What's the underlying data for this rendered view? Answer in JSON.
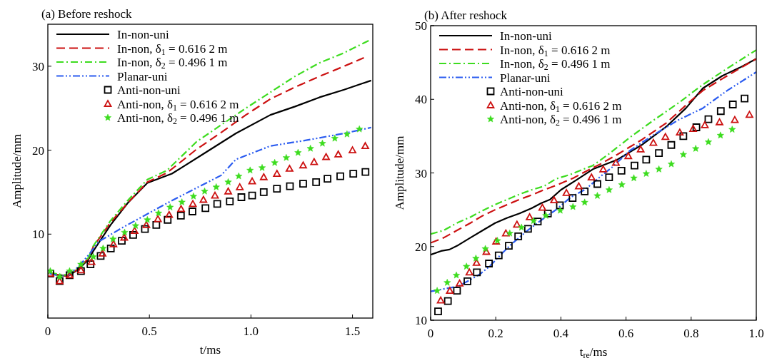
{
  "chart_data": [
    {
      "type": "line",
      "title": "(a) Before reshock",
      "xlabel": "t/ms",
      "ylabel": "Amplitude/mm",
      "xlim": [
        0,
        1.6
      ],
      "xticks": [
        0,
        0.5,
        {
          "value": 1,
          "label": "1.0"
        },
        1.5
      ],
      "ylim": [
        0,
        35
      ],
      "yticks": [
        10,
        20,
        30
      ],
      "legend": "top left",
      "grid": false,
      "series": [
        {
          "name": "In-non-uni",
          "type": "line",
          "line_style": "solid",
          "color": "#000000",
          "x": [
            0.01,
            0.06,
            0.1,
            0.15,
            0.2,
            0.224,
            0.309,
            0.393,
            0.49,
            0.611,
            0.769,
            0.926,
            1.096,
            1.217,
            1.338,
            1.459,
            1.592
          ],
          "values": [
            5.3,
            5.1,
            5.0,
            5.8,
            7.0,
            8.0,
            11.1,
            13.7,
            16.1,
            17.2,
            19.6,
            22.0,
            24.2,
            25.2,
            26.3,
            27.2,
            28.3
          ]
        },
        {
          "name": "In-non, δ$_{1}$ = 0.616 2 m",
          "type": "line",
          "line_style": "dashed",
          "color": "#cc1111",
          "x": [
            0.01,
            0.06,
            0.1,
            0.15,
            0.2,
            0.224,
            0.309,
            0.393,
            0.49,
            0.587,
            0.732,
            0.853,
            0.975,
            1.096,
            1.217,
            1.338,
            1.459,
            1.556
          ],
          "values": [
            5.3,
            5.1,
            5.0,
            5.9,
            7.1,
            8.5,
            11.4,
            13.7,
            16.2,
            17.3,
            20.1,
            22.1,
            24.2,
            26.1,
            27.5,
            28.8,
            30.0,
            31.0
          ]
        },
        {
          "name": "In-non, δ$_{2}$ = 0.496 1 m",
          "type": "line",
          "line_style": "dashdot",
          "color": "#3ddc1f",
          "x": [
            0.01,
            0.06,
            0.1,
            0.15,
            0.2,
            0.224,
            0.309,
            0.393,
            0.49,
            0.587,
            0.732,
            0.853,
            0.975,
            1.096,
            1.217,
            1.338,
            1.459,
            1.592
          ],
          "values": [
            5.4,
            5.2,
            5.1,
            6.0,
            7.2,
            8.6,
            11.6,
            14.0,
            16.5,
            17.6,
            21.0,
            23.0,
            25.0,
            26.9,
            28.8,
            30.4,
            31.6,
            33.2
          ]
        },
        {
          "name": "Planar-uni",
          "type": "line",
          "line_style": "dashdotdot",
          "color": "#2b5cf0",
          "x": [
            0.01,
            0.06,
            0.1,
            0.15,
            0.2,
            0.25,
            0.369,
            0.49,
            0.611,
            0.732,
            0.853,
            0.926,
            1.096,
            1.277,
            1.459,
            1.592
          ],
          "values": [
            5.3,
            5.0,
            5.1,
            6.1,
            7.5,
            9.1,
            10.8,
            12.4,
            14.0,
            15.5,
            17.0,
            18.9,
            20.5,
            21.2,
            22.0,
            22.7
          ]
        },
        {
          "name": "Anti-non-uni",
          "type": "scatter",
          "marker": "square",
          "color": "#000000",
          "x": [
            0.012,
            0.058,
            0.107,
            0.163,
            0.21,
            0.26,
            0.31,
            0.364,
            0.42,
            0.478,
            0.534,
            0.59,
            0.655,
            0.712,
            0.776,
            0.834,
            0.896,
            0.953,
            1.006,
            1.063,
            1.128,
            1.192,
            1.257,
            1.321,
            1.377,
            1.44,
            1.504,
            1.564
          ],
          "values": [
            5.3,
            4.4,
            5.1,
            5.6,
            6.4,
            7.4,
            8.3,
            9.2,
            9.9,
            10.6,
            11.1,
            11.7,
            12.2,
            12.7,
            13.1,
            13.6,
            13.9,
            14.4,
            14.6,
            15.0,
            15.4,
            15.7,
            16.0,
            16.2,
            16.6,
            16.9,
            17.2,
            17.4
          ]
        },
        {
          "name": "Anti-non, δ$_{1}$ = 0.616 2 m",
          "type": "scatter",
          "marker": "triangle",
          "color": "#cc1111",
          "x": [
            0.012,
            0.058,
            0.107,
            0.163,
            0.215,
            0.269,
            0.323,
            0.376,
            0.427,
            0.485,
            0.542,
            0.597,
            0.656,
            0.714,
            0.766,
            0.823,
            0.888,
            0.945,
            1.006,
            1.063,
            1.128,
            1.19,
            1.257,
            1.311,
            1.37,
            1.43,
            1.5,
            1.563
          ],
          "values": [
            5.3,
            4.4,
            5.1,
            5.7,
            6.7,
            7.7,
            8.8,
            9.6,
            10.4,
            11.1,
            11.8,
            12.3,
            13.0,
            13.6,
            14.1,
            14.6,
            15.1,
            15.6,
            16.3,
            16.8,
            17.2,
            17.8,
            18.2,
            18.6,
            19.2,
            19.5,
            20.0,
            20.5
          ]
        },
        {
          "name": "Anti-non, δ$_{2}$ = 0.496 1 m",
          "type": "scatter",
          "marker": "star",
          "color": "#3ddc1f",
          "x": [
            0.012,
            0.058,
            0.107,
            0.163,
            0.224,
            0.272,
            0.321,
            0.378,
            0.432,
            0.49,
            0.545,
            0.602,
            0.66,
            0.717,
            0.772,
            0.829,
            0.888,
            0.94,
            0.996,
            1.055,
            1.117,
            1.174,
            1.232,
            1.293,
            1.352,
            1.413,
            1.473,
            1.534
          ],
          "values": [
            5.6,
            4.9,
            5.6,
            6.4,
            7.3,
            8.3,
            9.4,
            10.2,
            11.0,
            11.7,
            12.5,
            13.2,
            13.8,
            14.5,
            15.1,
            15.6,
            16.2,
            16.9,
            17.6,
            17.9,
            18.5,
            19.1,
            19.7,
            20.2,
            20.8,
            21.4,
            21.9,
            22.5
          ]
        }
      ]
    },
    {
      "type": "line",
      "title": "(b) After reshock",
      "xlabel": "t$_{re}$/ms",
      "ylabel": "Amplitude/mm",
      "xlim": [
        0,
        1
      ],
      "xticks": [
        0,
        0.2,
        0.4,
        0.6,
        0.8,
        {
          "value": 1,
          "label": "1.0"
        }
      ],
      "ylim": [
        10,
        50
      ],
      "yticks": [
        10,
        20,
        30,
        40,
        50
      ],
      "legend": "top left",
      "grid": false,
      "series": [
        {
          "name": "In-non-uni",
          "type": "line",
          "line_style": "solid",
          "color": "#000000",
          "x": [
            0,
            0.032,
            0.058,
            0.085,
            0.122,
            0.16,
            0.198,
            0.235,
            0.273,
            0.31,
            0.34,
            0.367,
            0.4,
            0.446,
            0.498,
            0.573,
            0.648,
            0.724,
            0.784,
            0.836,
            0.896,
            0.949,
            1.0
          ],
          "values": [
            18.9,
            19.4,
            19.6,
            20.2,
            21.2,
            22.2,
            23.2,
            23.9,
            24.5,
            25.2,
            25.9,
            26.4,
            27.7,
            29.0,
            30.5,
            31.8,
            33.8,
            36.3,
            38.8,
            41.5,
            43.2,
            44.3,
            45.5
          ]
        },
        {
          "name": "In-non, δ$_{1}$ = 0.616 2 m",
          "type": "line",
          "line_style": "dashed",
          "color": "#cc1111",
          "x": [
            0,
            0.04,
            0.077,
            0.122,
            0.16,
            0.198,
            0.235,
            0.273,
            0.31,
            0.348,
            0.385,
            0.438,
            0.476,
            0.521,
            0.573,
            0.648,
            0.724,
            0.799,
            0.836,
            0.911,
            1.0
          ],
          "values": [
            20.5,
            21.2,
            22.1,
            23.2,
            24.2,
            25.0,
            25.7,
            26.4,
            27.0,
            27.7,
            28.3,
            29.3,
            30.2,
            31.2,
            32.5,
            34.5,
            36.8,
            39.8,
            41.2,
            43.2,
            45.5
          ]
        },
        {
          "name": "In-non, δ$_{2}$ = 0.496 1 m",
          "type": "line",
          "line_style": "dashdot",
          "color": "#3ddc1f",
          "x": [
            0,
            0.04,
            0.085,
            0.122,
            0.16,
            0.198,
            0.235,
            0.273,
            0.31,
            0.348,
            0.385,
            0.43,
            0.468,
            0.498,
            0.551,
            0.611,
            0.686,
            0.761,
            0.836,
            0.911,
            1.0
          ],
          "values": [
            21.7,
            22.2,
            23.3,
            24.0,
            24.9,
            25.7,
            26.4,
            27.1,
            27.7,
            28.2,
            29.2,
            29.8,
            30.5,
            31.0,
            32.7,
            34.8,
            37.2,
            39.5,
            42.0,
            44.2,
            46.7
          ]
        },
        {
          "name": "Planar-uni",
          "type": "line",
          "line_style": "dashdotdot",
          "color": "#2b5cf0",
          "x": [
            0,
            0.047,
            0.085,
            0.122,
            0.153,
            0.183,
            0.213,
            0.25,
            0.295,
            0.34,
            0.385,
            0.43,
            0.476,
            0.521,
            0.558,
            0.611,
            0.686,
            0.761,
            0.836,
            0.911,
            1.0
          ],
          "values": [
            13.9,
            14.3,
            14.6,
            15.5,
            16.3,
            17.4,
            18.8,
            20.4,
            22.1,
            23.6,
            25.0,
            26.7,
            27.8,
            29.5,
            30.8,
            33.0,
            35.2,
            37.2,
            38.8,
            41.2,
            43.7
          ]
        },
        {
          "name": "Anti-non-uni",
          "type": "scatter",
          "marker": "square",
          "color": "#000000",
          "x": [
            0.023,
            0.053,
            0.081,
            0.113,
            0.142,
            0.179,
            0.209,
            0.24,
            0.269,
            0.299,
            0.329,
            0.36,
            0.397,
            0.436,
            0.473,
            0.512,
            0.548,
            0.586,
            0.626,
            0.662,
            0.701,
            0.739,
            0.776,
            0.816,
            0.853,
            0.891,
            0.928,
            0.964
          ],
          "values": [
            11.2,
            12.6,
            14.0,
            15.3,
            16.5,
            17.7,
            18.8,
            20.1,
            21.4,
            22.4,
            23.4,
            24.5,
            25.6,
            26.6,
            27.5,
            28.5,
            29.4,
            30.3,
            31.0,
            31.8,
            32.7,
            33.8,
            35.0,
            36.2,
            37.3,
            38.4,
            39.3,
            40.1
          ]
        },
        {
          "name": "Anti-non, δ$_{1}$ = 0.616 2 m",
          "type": "scatter",
          "marker": "triangle",
          "color": "#cc1111",
          "x": [
            0.031,
            0.059,
            0.089,
            0.119,
            0.141,
            0.171,
            0.201,
            0.231,
            0.265,
            0.304,
            0.343,
            0.379,
            0.417,
            0.455,
            0.494,
            0.53,
            0.569,
            0.607,
            0.645,
            0.684,
            0.721,
            0.765,
            0.806,
            0.842,
            0.887,
            0.934,
            0.979
          ],
          "values": [
            12.7,
            14.0,
            15.0,
            16.5,
            17.8,
            19.3,
            20.7,
            21.8,
            23.0,
            24.0,
            25.3,
            26.3,
            27.3,
            28.2,
            29.4,
            30.5,
            31.4,
            32.3,
            33.2,
            34.1,
            34.9,
            35.5,
            36.0,
            36.5,
            36.9,
            37.2,
            37.9
          ]
        },
        {
          "name": "Anti-non, δ$_{2}$ = 0.496 1 m",
          "type": "scatter",
          "marker": "star",
          "color": "#3ddc1f",
          "x": [
            0.02,
            0.051,
            0.079,
            0.11,
            0.139,
            0.168,
            0.205,
            0.243,
            0.279,
            0.316,
            0.354,
            0.398,
            0.437,
            0.473,
            0.512,
            0.548,
            0.587,
            0.624,
            0.662,
            0.701,
            0.739,
            0.776,
            0.814,
            0.853,
            0.89,
            0.926
          ],
          "values": [
            14.0,
            15.1,
            16.1,
            17.3,
            18.4,
            19.7,
            20.8,
            21.8,
            22.6,
            23.5,
            24.2,
            24.9,
            25.4,
            26.0,
            26.9,
            27.7,
            28.4,
            29.3,
            29.9,
            30.5,
            31.2,
            32.5,
            33.3,
            34.2,
            35.1,
            35.9
          ]
        }
      ]
    }
  ]
}
